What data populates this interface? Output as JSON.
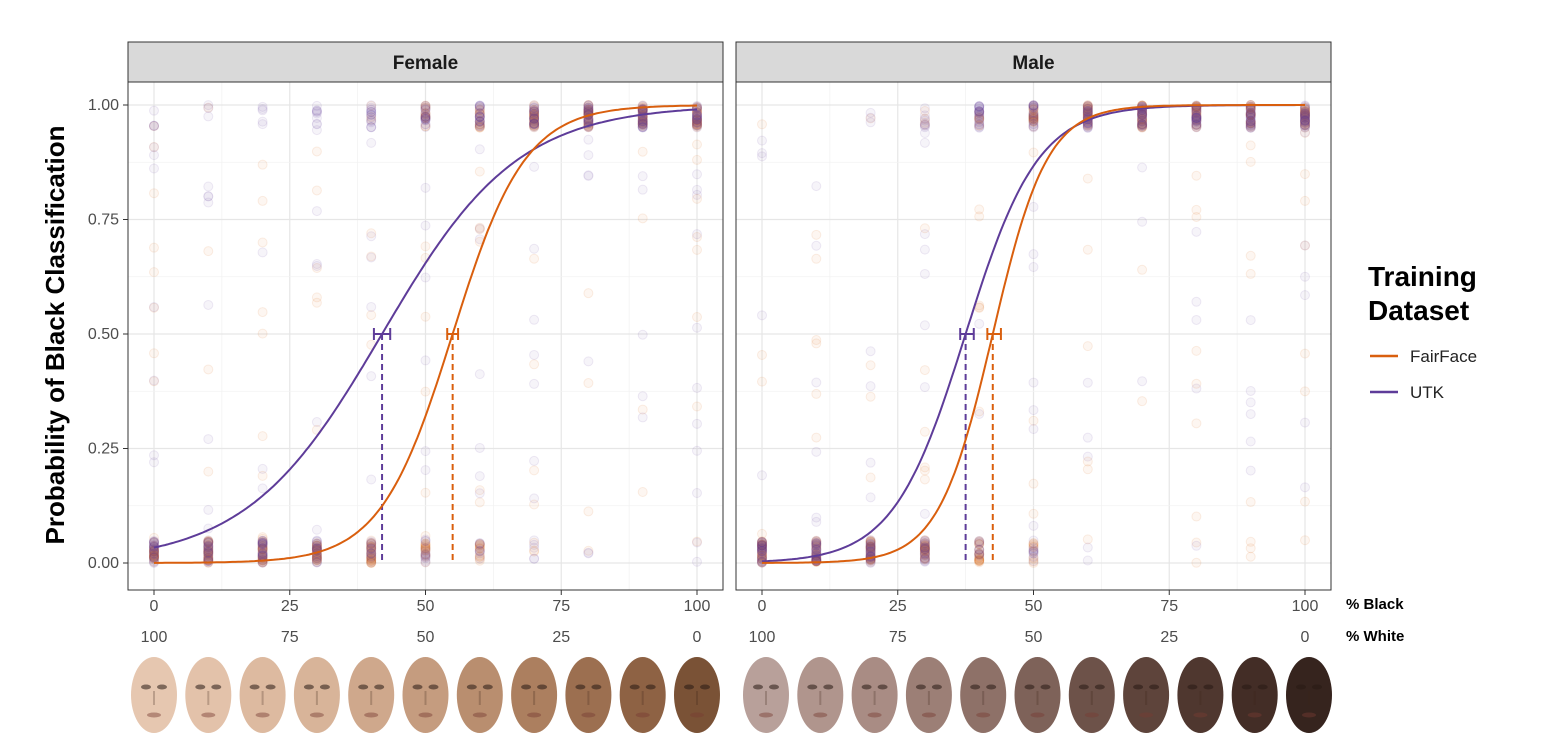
{
  "chart_data": {
    "type": "scatter",
    "ylabel": "Probability of Black Classification",
    "xlabel_primary": "% Black",
    "xlabel_secondary": "% White",
    "xlim": [
      0,
      100
    ],
    "ylim": [
      0,
      1
    ],
    "x_ticks": [
      "0",
      "25",
      "50",
      "75",
      "100"
    ],
    "x_ticks_secondary": [
      "100",
      "75",
      "50",
      "25",
      "0"
    ],
    "y_ticks": [
      "0.00",
      "0.25",
      "0.50",
      "0.75",
      "1.00"
    ],
    "x_levels": [
      0,
      10,
      20,
      30,
      40,
      50,
      60,
      70,
      80,
      90,
      100
    ],
    "grid": true,
    "legend": {
      "title": "Training Dataset",
      "position": "right",
      "entries": [
        "FairFace",
        "UTK"
      ]
    },
    "colors": {
      "FairFace": "#d95f0e",
      "UTK": "#5e3c99"
    },
    "panels": [
      {
        "name": "Female",
        "series": [
          {
            "name": "FairFace",
            "midpoint": 55,
            "ci": [
              54,
              56
            ],
            "slope": 0.15
          },
          {
            "name": "UTK",
            "midpoint": 42,
            "ci": [
              40.5,
              43.5
            ],
            "slope": 0.08
          }
        ]
      },
      {
        "name": "Male",
        "series": [
          {
            "name": "FairFace",
            "midpoint": 42.5,
            "ci": [
              41.5,
              44
            ],
            "slope": 0.2
          },
          {
            "name": "UTK",
            "midpoint": 37.5,
            "ci": [
              36.5,
              39
            ],
            "slope": 0.15
          }
        ]
      }
    ]
  },
  "faces": {
    "female_colors": [
      "#e6c7b0",
      "#e3c2aa",
      "#ddbaa0",
      "#d8b499",
      "#cfa88c",
      "#c59c7f",
      "#b98e6f",
      "#ac7f5f",
      "#9c6f50",
      "#8e6244",
      "#7a5236"
    ],
    "male_colors": [
      "#b8a09a",
      "#b0958d",
      "#a98c84",
      "#9c7f76",
      "#8e7168",
      "#7e6259",
      "#6d5249",
      "#5e443b",
      "#4f372f",
      "#432d26",
      "#36241e"
    ]
  }
}
